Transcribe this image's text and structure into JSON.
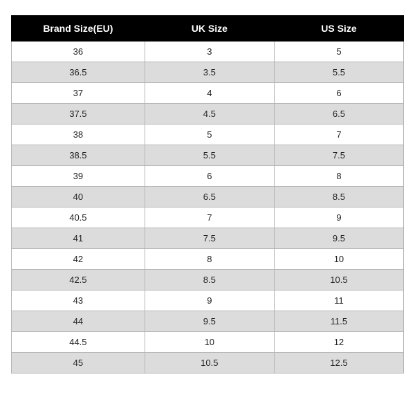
{
  "table": {
    "type": "table",
    "columns": [
      "Brand Size(EU)",
      "UK Size",
      "US Size"
    ],
    "rows": [
      [
        "36",
        "3",
        "5"
      ],
      [
        "36.5",
        "3.5",
        "5.5"
      ],
      [
        "37",
        "4",
        "6"
      ],
      [
        "37.5",
        "4.5",
        "6.5"
      ],
      [
        "38",
        "5",
        "7"
      ],
      [
        "38.5",
        "5.5",
        "7.5"
      ],
      [
        "39",
        "6",
        "8"
      ],
      [
        "40",
        "6.5",
        "8.5"
      ],
      [
        "40.5",
        "7",
        "9"
      ],
      [
        "41",
        "7.5",
        "9.5"
      ],
      [
        "42",
        "8",
        "10"
      ],
      [
        "42.5",
        "8.5",
        "10.5"
      ],
      [
        "43",
        "9",
        "11"
      ],
      [
        "44",
        "9.5",
        "11.5"
      ],
      [
        "44.5",
        "10",
        "12"
      ],
      [
        "45",
        "10.5",
        "12.5"
      ]
    ],
    "header_bg_color": "#000000",
    "header_text_color": "#ffffff",
    "row_bg_color": "#ffffff",
    "row_alt_bg_color": "#dcdcdc",
    "border_color": "#b5b5b5",
    "text_color": "#222222",
    "header_fontsize": 14,
    "cell_fontsize": 13,
    "column_widths_pct": [
      34,
      33,
      33
    ]
  }
}
